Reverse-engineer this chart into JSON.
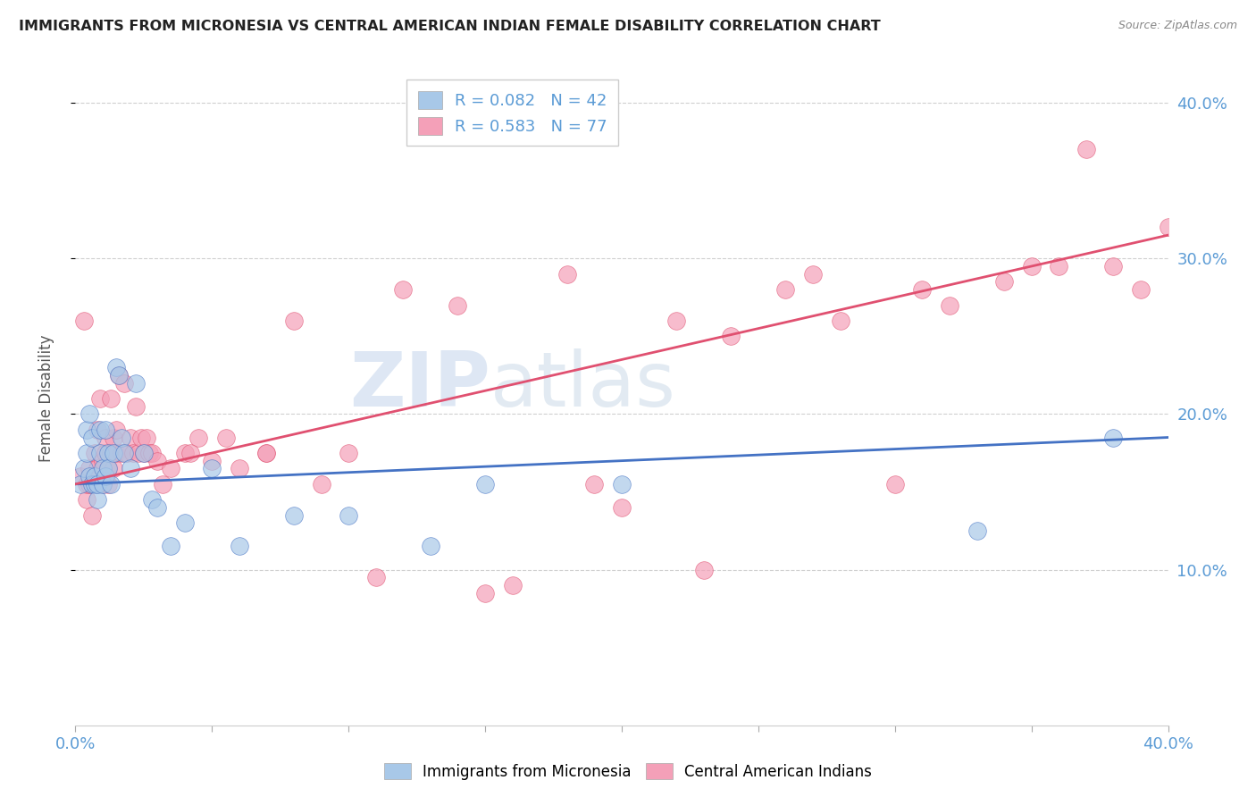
{
  "title": "IMMIGRANTS FROM MICRONESIA VS CENTRAL AMERICAN INDIAN FEMALE DISABILITY CORRELATION CHART",
  "source": "Source: ZipAtlas.com",
  "ylabel": "Female Disability",
  "xlim": [
    0.0,
    0.4
  ],
  "ylim": [
    0.0,
    0.42
  ],
  "yticks": [
    0.1,
    0.2,
    0.3,
    0.4
  ],
  "ytick_labels": [
    "10.0%",
    "20.0%",
    "30.0%",
    "40.0%"
  ],
  "xticks": [
    0.0,
    0.05,
    0.1,
    0.15,
    0.2,
    0.25,
    0.3,
    0.35,
    0.4
  ],
  "xtick_labels": [
    "0.0%",
    "",
    "",
    "",
    "",
    "",
    "",
    "",
    "40.0%"
  ],
  "legend_R1": "R = 0.082",
  "legend_N1": "N = 42",
  "legend_R2": "R = 0.583",
  "legend_N2": "N = 77",
  "color_blue": "#a8c8e8",
  "color_pink": "#f4a0b8",
  "line_blue": "#4472c4",
  "line_pink": "#e05070",
  "watermark_zip": "ZIP",
  "watermark_atlas": "atlas",
  "blue_scatter_x": [
    0.002,
    0.003,
    0.004,
    0.004,
    0.005,
    0.005,
    0.006,
    0.006,
    0.007,
    0.007,
    0.008,
    0.008,
    0.009,
    0.009,
    0.01,
    0.01,
    0.011,
    0.011,
    0.012,
    0.012,
    0.013,
    0.014,
    0.015,
    0.016,
    0.017,
    0.018,
    0.02,
    0.022,
    0.025,
    0.028,
    0.03,
    0.035,
    0.04,
    0.05,
    0.06,
    0.08,
    0.1,
    0.13,
    0.15,
    0.2,
    0.33,
    0.38
  ],
  "blue_scatter_y": [
    0.155,
    0.165,
    0.19,
    0.175,
    0.2,
    0.16,
    0.155,
    0.185,
    0.155,
    0.16,
    0.145,
    0.155,
    0.175,
    0.19,
    0.165,
    0.155,
    0.19,
    0.16,
    0.175,
    0.165,
    0.155,
    0.175,
    0.23,
    0.225,
    0.185,
    0.175,
    0.165,
    0.22,
    0.175,
    0.145,
    0.14,
    0.115,
    0.13,
    0.165,
    0.115,
    0.135,
    0.135,
    0.115,
    0.155,
    0.155,
    0.125,
    0.185
  ],
  "pink_scatter_x": [
    0.002,
    0.003,
    0.004,
    0.004,
    0.005,
    0.005,
    0.006,
    0.006,
    0.007,
    0.007,
    0.008,
    0.008,
    0.009,
    0.009,
    0.01,
    0.01,
    0.011,
    0.011,
    0.012,
    0.012,
    0.013,
    0.013,
    0.014,
    0.014,
    0.015,
    0.015,
    0.016,
    0.017,
    0.018,
    0.019,
    0.02,
    0.021,
    0.022,
    0.023,
    0.024,
    0.025,
    0.026,
    0.027,
    0.028,
    0.03,
    0.032,
    0.035,
    0.04,
    0.045,
    0.05,
    0.06,
    0.07,
    0.08,
    0.1,
    0.12,
    0.14,
    0.16,
    0.18,
    0.2,
    0.22,
    0.24,
    0.26,
    0.28,
    0.3,
    0.32,
    0.34,
    0.36,
    0.37,
    0.38,
    0.39,
    0.4,
    0.35,
    0.31,
    0.27,
    0.23,
    0.19,
    0.15,
    0.11,
    0.09,
    0.07,
    0.055,
    0.042
  ],
  "pink_scatter_y": [
    0.16,
    0.26,
    0.145,
    0.155,
    0.165,
    0.155,
    0.155,
    0.135,
    0.155,
    0.175,
    0.165,
    0.19,
    0.16,
    0.21,
    0.17,
    0.155,
    0.175,
    0.185,
    0.165,
    0.155,
    0.21,
    0.175,
    0.165,
    0.185,
    0.19,
    0.175,
    0.225,
    0.175,
    0.22,
    0.175,
    0.185,
    0.175,
    0.205,
    0.175,
    0.185,
    0.175,
    0.185,
    0.175,
    0.175,
    0.17,
    0.155,
    0.165,
    0.175,
    0.185,
    0.17,
    0.165,
    0.175,
    0.26,
    0.175,
    0.28,
    0.27,
    0.09,
    0.29,
    0.14,
    0.26,
    0.25,
    0.28,
    0.26,
    0.155,
    0.27,
    0.285,
    0.295,
    0.37,
    0.295,
    0.28,
    0.32,
    0.295,
    0.28,
    0.29,
    0.1,
    0.155,
    0.085,
    0.095,
    0.155,
    0.175,
    0.185,
    0.175
  ]
}
